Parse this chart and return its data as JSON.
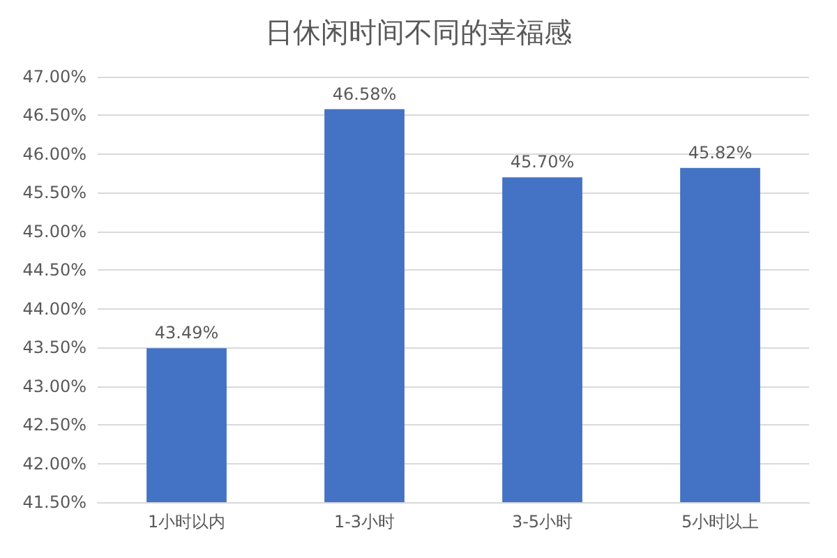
{
  "chart_data": {
    "type": "bar",
    "title": "日休闲时间不同的幸福感",
    "categories": [
      "1小时以内",
      "1-3小时",
      "3-5小时",
      "5小时以上"
    ],
    "values": [
      43.49,
      46.58,
      45.7,
      45.82
    ],
    "value_labels": [
      "43.49%",
      "46.58%",
      "45.70%",
      "45.82%"
    ],
    "color": "#4472c4",
    "ylim": [
      41.5,
      47
    ],
    "yticks": [
      {
        "value": 41.5,
        "label": "41.50%"
      },
      {
        "value": 42,
        "label": "42.00%"
      },
      {
        "value": 42.5,
        "label": "42.50%"
      },
      {
        "value": 43,
        "label": "43.00%"
      },
      {
        "value": 43.5,
        "label": "43.50%"
      },
      {
        "value": 44,
        "label": "44.00%"
      },
      {
        "value": 44.5,
        "label": "44.50%"
      },
      {
        "value": 45,
        "label": "45.00%"
      },
      {
        "value": 45.5,
        "label": "45.50%"
      },
      {
        "value": 46,
        "label": "46.00%"
      },
      {
        "value": 46.5,
        "label": "46.50%"
      },
      {
        "value": 47,
        "label": "47.00%"
      }
    ],
    "grid": "y"
  }
}
